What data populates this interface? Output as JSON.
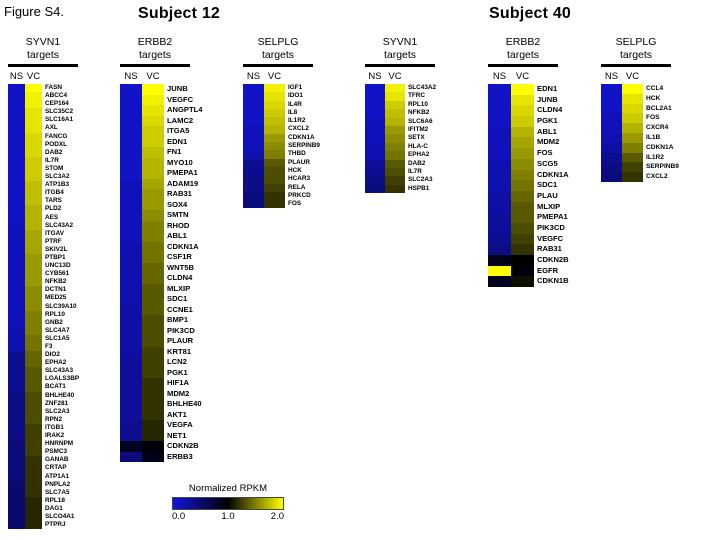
{
  "figure_label": "Figure S4.",
  "subject_headers": [
    "Subject 12",
    "Subject 40"
  ],
  "colorbar": {
    "title": "Normalized RPKM",
    "ticks": [
      "0.0",
      "1.0",
      "2.0"
    ],
    "min": 0,
    "max": 2,
    "colors": {
      "low": "#1414DC",
      "mid": "#000000",
      "high": "#FFFF00"
    }
  },
  "chart_data": [
    {
      "type": "heatmap",
      "subject": "Subject 12",
      "title": "SYVN1 targets",
      "title_line1": "SYVN1",
      "title_line2": "targets",
      "columns": [
        "NS",
        "VC"
      ],
      "value_scale": [
        0,
        2
      ],
      "rows": [
        "FASN",
        "ABCC4",
        "CEP164",
        "SLC35C2",
        "SLC16A1",
        "AXL",
        "FANCG",
        "PODXL",
        "DAB2",
        "IL7R",
        "STOM",
        "SLC3A2",
        "ATP1B3",
        "ITGB4",
        "TARS",
        "PLD2",
        "AES",
        "SLC43A2",
        "ITGAV",
        "PTRF",
        "SKIV2L",
        "PTBP1",
        "UNC13D",
        "CYB561",
        "NFKB2",
        "DCTN1",
        "MED25",
        "SLC39A10",
        "RPL10",
        "GNB2",
        "SLC4A7",
        "SLC1A5",
        "F3",
        "DIO2",
        "EPHA2",
        "SLC43A3",
        "LGALS3BP",
        "BCAT1",
        "BHLHE40",
        "ZNF281",
        "SLC2A3",
        "RPN2",
        "ITGB1",
        "IRAK2",
        "HNRNPM",
        "PSMC3",
        "GANAB",
        "CRTAP",
        "ATP1A1",
        "PNPLA2",
        "SLC7A5",
        "RPL18",
        "DAG1",
        "SLCO4A1",
        "PTPRJ"
      ],
      "values": [
        [
          0.1,
          2.0
        ],
        [
          0.1,
          1.95
        ],
        [
          0.1,
          1.95
        ],
        [
          0.1,
          1.9
        ],
        [
          0.1,
          1.9
        ],
        [
          0.1,
          1.9
        ],
        [
          0.1,
          1.85
        ],
        [
          0.1,
          1.85
        ],
        [
          0.1,
          1.85
        ],
        [
          0.1,
          1.8
        ],
        [
          0.1,
          1.8
        ],
        [
          0.1,
          1.8
        ],
        [
          0.1,
          1.75
        ],
        [
          0.1,
          1.75
        ],
        [
          0.1,
          1.75
        ],
        [
          0.1,
          1.7
        ],
        [
          0.1,
          1.7
        ],
        [
          0.15,
          1.7
        ],
        [
          0.15,
          1.65
        ],
        [
          0.15,
          1.65
        ],
        [
          0.15,
          1.65
        ],
        [
          0.15,
          1.6
        ],
        [
          0.15,
          1.6
        ],
        [
          0.15,
          1.6
        ],
        [
          0.15,
          1.6
        ],
        [
          0.15,
          1.55
        ],
        [
          0.15,
          1.55
        ],
        [
          0.15,
          1.55
        ],
        [
          0.15,
          1.5
        ],
        [
          0.15,
          1.5
        ],
        [
          0.2,
          1.5
        ],
        [
          0.2,
          1.45
        ],
        [
          0.2,
          1.45
        ],
        [
          0.35,
          1.4
        ],
        [
          0.35,
          1.4
        ],
        [
          0.35,
          1.35
        ],
        [
          0.35,
          1.35
        ],
        [
          0.35,
          1.35
        ],
        [
          0.4,
          1.3
        ],
        [
          0.4,
          1.3
        ],
        [
          0.4,
          1.3
        ],
        [
          0.4,
          1.3
        ],
        [
          0.4,
          1.25
        ],
        [
          0.4,
          1.25
        ],
        [
          0.45,
          1.25
        ],
        [
          0.45,
          1.25
        ],
        [
          0.45,
          1.2
        ],
        [
          0.45,
          1.2
        ],
        [
          0.45,
          1.2
        ],
        [
          0.5,
          1.2
        ],
        [
          0.5,
          1.2
        ],
        [
          0.5,
          1.15
        ],
        [
          0.5,
          1.15
        ],
        [
          0.5,
          1.15
        ],
        [
          0.5,
          1.15
        ]
      ]
    },
    {
      "type": "heatmap",
      "subject": "Subject 12",
      "title": "ERBB2 targets",
      "title_line1": "ERBB2",
      "title_line2": "targets",
      "columns": [
        "NS",
        "VC"
      ],
      "value_scale": [
        0,
        2
      ],
      "rows": [
        "JUNB",
        "VEGFC",
        "ANGPTL4",
        "LAMC2",
        "ITGA5",
        "EDN1",
        "FN1",
        "MYO10",
        "PMEPA1",
        "ADAM19",
        "RAB31",
        "SOX4",
        "SMTN",
        "RHOD",
        "ABL1",
        "CDKN1A",
        "CSF1R",
        "WNT5B",
        "CLDN4",
        "MLXIP",
        "SDC1",
        "CCNE1",
        "BMP1",
        "PIK3CD",
        "PLAUR",
        "KRT81",
        "LCN2",
        "PGK1",
        "HIF1A",
        "MDM2",
        "BHLHE40",
        "AKT1",
        "VEGFA",
        "NET1",
        "CDKN2B",
        "ERBB3"
      ],
      "values": [
        [
          0.1,
          2.0
        ],
        [
          0.1,
          1.95
        ],
        [
          0.1,
          1.9
        ],
        [
          0.1,
          1.85
        ],
        [
          0.1,
          1.8
        ],
        [
          0.1,
          1.8
        ],
        [
          0.1,
          1.75
        ],
        [
          0.1,
          1.7
        ],
        [
          0.1,
          1.7
        ],
        [
          0.15,
          1.65
        ],
        [
          0.15,
          1.6
        ],
        [
          0.15,
          1.6
        ],
        [
          0.15,
          1.55
        ],
        [
          0.15,
          1.5
        ],
        [
          0.15,
          1.5
        ],
        [
          0.2,
          1.45
        ],
        [
          0.2,
          1.45
        ],
        [
          0.2,
          1.4
        ],
        [
          0.2,
          1.4
        ],
        [
          0.2,
          1.35
        ],
        [
          0.2,
          1.35
        ],
        [
          0.25,
          1.35
        ],
        [
          0.25,
          1.3
        ],
        [
          0.25,
          1.3
        ],
        [
          0.25,
          1.3
        ],
        [
          0.25,
          1.25
        ],
        [
          0.3,
          1.25
        ],
        [
          0.3,
          1.25
        ],
        [
          0.3,
          1.2
        ],
        [
          0.3,
          1.2
        ],
        [
          0.3,
          1.2
        ],
        [
          0.3,
          1.2
        ],
        [
          0.35,
          1.15
        ],
        [
          0.35,
          1.15
        ],
        [
          0.85,
          0.95
        ],
        [
          0.45,
          0.9
        ]
      ]
    },
    {
      "type": "heatmap",
      "subject": "Subject 12",
      "title": "SELPLG targets",
      "title_line1": "SELPLG",
      "title_line2": "targets",
      "columns": [
        "NS",
        "VC"
      ],
      "value_scale": [
        0,
        2
      ],
      "rows": [
        "IGF1",
        "IDO1",
        "IL4R",
        "IL8",
        "IL1R2",
        "CXCL2",
        "CDKN1A",
        "SERPINB9",
        "THBD",
        "PLAUR",
        "HCK",
        "HCAR3",
        "RELA",
        "PRKCD",
        "FOS"
      ],
      "values": [
        [
          0.1,
          1.95
        ],
        [
          0.1,
          1.9
        ],
        [
          0.1,
          1.85
        ],
        [
          0.1,
          1.8
        ],
        [
          0.1,
          1.75
        ],
        [
          0.15,
          1.7
        ],
        [
          0.15,
          1.6
        ],
        [
          0.15,
          1.55
        ],
        [
          0.2,
          1.5
        ],
        [
          0.35,
          1.35
        ],
        [
          0.35,
          1.3
        ],
        [
          0.4,
          1.3
        ],
        [
          0.4,
          1.25
        ],
        [
          0.45,
          1.2
        ],
        [
          0.45,
          1.2
        ]
      ]
    },
    {
      "type": "heatmap",
      "subject": "Subject 40",
      "title": "SYVN1 targets",
      "title_line1": "SYVN1",
      "title_line2": "targets",
      "columns": [
        "NS",
        "VC"
      ],
      "value_scale": [
        0,
        2
      ],
      "rows": [
        "SLC43A2",
        "TFRC",
        "RPL10",
        "NFKB2",
        "SLC6A6",
        "IFITM2",
        "SETX",
        "HLA-C",
        "EPHA2",
        "DAB2",
        "IL7R",
        "SLC2A3",
        "HSPB1"
      ],
      "values": [
        [
          0.1,
          1.95
        ],
        [
          0.1,
          1.9
        ],
        [
          0.1,
          1.8
        ],
        [
          0.1,
          1.75
        ],
        [
          0.15,
          1.7
        ],
        [
          0.15,
          1.6
        ],
        [
          0.15,
          1.55
        ],
        [
          0.2,
          1.5
        ],
        [
          0.2,
          1.45
        ],
        [
          0.3,
          1.35
        ],
        [
          0.35,
          1.3
        ],
        [
          0.4,
          1.25
        ],
        [
          0.45,
          1.2
        ]
      ]
    },
    {
      "type": "heatmap",
      "subject": "Subject 40",
      "title": "ERBB2 targets",
      "title_line1": "ERBB2",
      "title_line2": "targets",
      "columns": [
        "NS",
        "VC"
      ],
      "value_scale": [
        0,
        2
      ],
      "rows": [
        "EDN1",
        "JUNB",
        "CLDN4",
        "PGK1",
        "ABL1",
        "MDM2",
        "FOS",
        "SCG5",
        "CDKN1A",
        "SDC1",
        "PLAU",
        "MLXIP",
        "PMEPA1",
        "PIK3CD",
        "VEGFC",
        "RAB31",
        "CDKN2B",
        "EGFR",
        "CDKN1B"
      ],
      "values": [
        [
          0.1,
          2.0
        ],
        [
          0.1,
          1.9
        ],
        [
          0.1,
          1.85
        ],
        [
          0.1,
          1.8
        ],
        [
          0.15,
          1.7
        ],
        [
          0.15,
          1.65
        ],
        [
          0.15,
          1.6
        ],
        [
          0.2,
          1.55
        ],
        [
          0.2,
          1.5
        ],
        [
          0.2,
          1.45
        ],
        [
          0.25,
          1.4
        ],
        [
          0.25,
          1.35
        ],
        [
          0.3,
          1.35
        ],
        [
          0.3,
          1.3
        ],
        [
          0.35,
          1.25
        ],
        [
          0.4,
          1.2
        ],
        [
          0.9,
          1.0
        ],
        [
          2.0,
          0.95
        ],
        [
          0.85,
          1.05
        ]
      ]
    },
    {
      "type": "heatmap",
      "subject": "Subject 40",
      "title": "SELPLG targets",
      "title_line1": "SELPLG",
      "title_line2": "targets",
      "columns": [
        "NS",
        "VC"
      ],
      "value_scale": [
        0,
        2
      ],
      "rows": [
        "CCL4",
        "HCK",
        "BCL2A1",
        "FOS",
        "CXCR4",
        "IL1B",
        "CDKN1A",
        "IL1R2",
        "SERPINB9",
        "CXCL2"
      ],
      "values": [
        [
          0.1,
          2.0
        ],
        [
          0.1,
          1.9
        ],
        [
          0.1,
          1.85
        ],
        [
          0.15,
          1.8
        ],
        [
          0.15,
          1.7
        ],
        [
          0.2,
          1.6
        ],
        [
          0.25,
          1.5
        ],
        [
          0.35,
          1.35
        ],
        [
          0.4,
          1.25
        ],
        [
          0.45,
          1.2
        ]
      ]
    }
  ]
}
